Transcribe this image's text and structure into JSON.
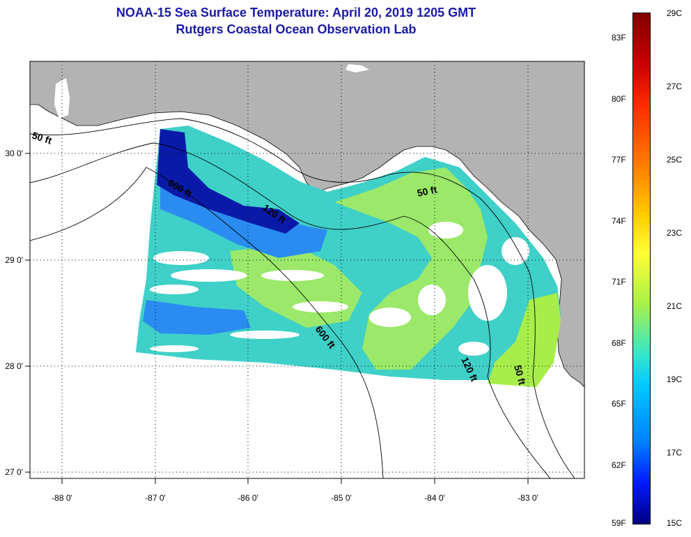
{
  "header": {
    "title": "NOAA-15 Sea Surface Temperature:  April 20, 2019 1205 GMT",
    "subtitle": "Rutgers Coastal Ocean Observation Lab"
  },
  "map": {
    "lon_ticks": [
      "-88 0'",
      "-87 0'",
      "-86 0'",
      "-85 0'",
      "-84 0'",
      "-83 0'"
    ],
    "lat_ticks": [
      "30 0'",
      "29 0'",
      "28 0'",
      "27 0'"
    ],
    "contour_labels": [
      "50 ft",
      "600 ft",
      "120 ft",
      "50 ft",
      "600 ft",
      "120 ft",
      "50 ft"
    ],
    "colors": {
      "land": "#b3b3b3",
      "cloud": "#ffffff",
      "cold_band": "#0a1aa8",
      "shelf_water": "#9be86a",
      "mid_water": "#3fd0c8",
      "cool_water": "#2a8cf0"
    }
  },
  "colorbar": {
    "fahrenheit": [
      "83F",
      "80F",
      "77F",
      "74F",
      "71F",
      "68F",
      "65F",
      "62F",
      "59F"
    ],
    "celsius": [
      "29C",
      "27C",
      "25C",
      "23C",
      "21C",
      "19C",
      "17C",
      "15C"
    ]
  }
}
